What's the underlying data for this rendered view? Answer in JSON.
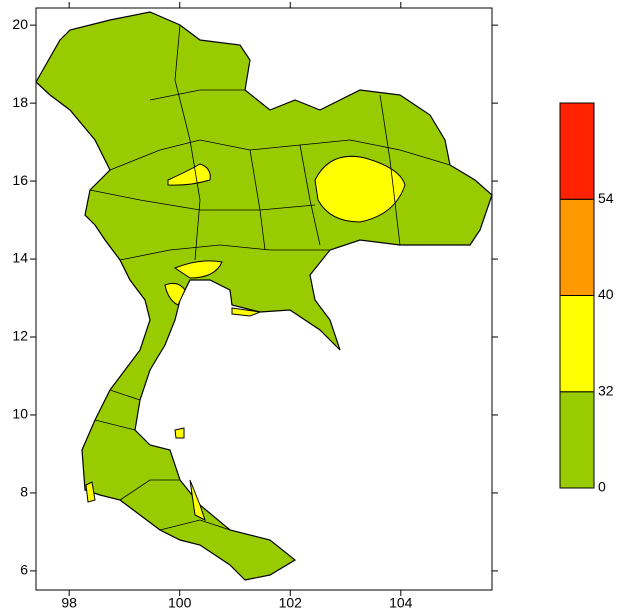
{
  "map": {
    "lon_ticks": [
      98,
      100,
      102,
      104
    ],
    "lon_lim": [
      97.4,
      105.65
    ],
    "lat_ticks": [
      6,
      8,
      10,
      12,
      14,
      16,
      18,
      20
    ],
    "lat_lim": [
      5.51,
      20.44
    ]
  },
  "colorbar": {
    "levels": [
      0,
      32,
      40,
      54
    ],
    "colors": [
      "#99cc00",
      "#ffff00",
      "#ff9900",
      "#ff2200"
    ]
  }
}
